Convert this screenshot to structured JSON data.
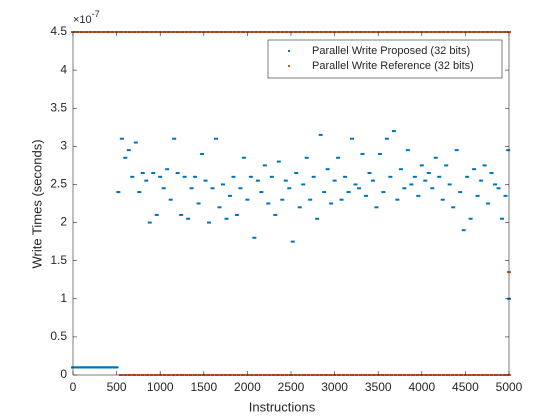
{
  "chart_data": {
    "type": "scatter",
    "xlabel": "Instructions",
    "ylabel": "Write Times (seconds)",
    "y_exponent_base": "×10",
    "y_exponent_power": "-7",
    "xlim": [
      0,
      5000
    ],
    "xticks": [
      0,
      500,
      1000,
      1500,
      2000,
      2500,
      3000,
      3500,
      4000,
      4500,
      5000
    ],
    "ylim": [
      0,
      4.5
    ],
    "yticks": [
      0,
      0.5,
      1,
      1.5,
      2,
      2.5,
      3,
      3.5,
      4,
      4.5
    ],
    "legend": "upper right",
    "series": [
      {
        "name": "Parallel Write Proposed (32 bits)",
        "color": "#0072bd",
        "x": [
          0,
          20,
          40,
          60,
          80,
          100,
          120,
          140,
          160,
          180,
          200,
          220,
          240,
          260,
          280,
          300,
          320,
          340,
          360,
          380,
          400,
          420,
          440,
          460,
          480,
          500,
          520,
          560,
          600,
          640,
          680,
          720,
          760,
          800,
          840,
          880,
          920,
          960,
          1000,
          1040,
          1080,
          1120,
          1160,
          1200,
          1240,
          1280,
          1320,
          1360,
          1400,
          1440,
          1480,
          1520,
          1560,
          1600,
          1640,
          1680,
          1720,
          1760,
          1800,
          1840,
          1880,
          1920,
          1960,
          2000,
          2040,
          2080,
          2120,
          2160,
          2200,
          2240,
          2280,
          2320,
          2360,
          2400,
          2440,
          2480,
          2520,
          2560,
          2600,
          2640,
          2680,
          2720,
          2760,
          2800,
          2840,
          2880,
          2920,
          2960,
          3000,
          3040,
          3080,
          3120,
          3160,
          3200,
          3240,
          3280,
          3320,
          3360,
          3400,
          3440,
          3480,
          3520,
          3560,
          3600,
          3640,
          3680,
          3720,
          3760,
          3800,
          3840,
          3880,
          3920,
          3960,
          4000,
          4040,
          4080,
          4120,
          4160,
          4200,
          4240,
          4280,
          4320,
          4360,
          4400,
          4440,
          4480,
          4520,
          4560,
          4600,
          4640,
          4680,
          4720,
          4760,
          4800,
          4840,
          4880,
          4920,
          4960,
          4990,
          5000
        ],
        "values": [
          0.1,
          0.1,
          0.1,
          0.1,
          0.1,
          0.1,
          0.1,
          0.1,
          0.1,
          0.1,
          0.1,
          0.1,
          0.1,
          0.1,
          0.1,
          0.1,
          0.1,
          0.1,
          0.1,
          0.1,
          0.1,
          0.1,
          0.1,
          0.1,
          0.1,
          0.1,
          2.4,
          3.1,
          2.85,
          2.95,
          2.6,
          3.05,
          2.4,
          2.65,
          2.55,
          2.0,
          2.65,
          2.1,
          2.6,
          2.45,
          2.7,
          2.3,
          3.1,
          2.65,
          2.1,
          2.6,
          2.05,
          2.45,
          2.6,
          2.25,
          2.9,
          2.55,
          2.0,
          2.45,
          3.1,
          2.2,
          2.5,
          2.05,
          2.35,
          2.6,
          2.1,
          2.45,
          2.85,
          2.3,
          2.6,
          1.8,
          2.55,
          2.4,
          2.75,
          2.25,
          2.6,
          2.1,
          2.8,
          2.3,
          2.55,
          2.45,
          1.75,
          2.65,
          2.2,
          2.5,
          2.85,
          2.3,
          2.6,
          2.05,
          3.15,
          2.4,
          2.7,
          2.25,
          2.55,
          2.85,
          2.3,
          2.6,
          2.4,
          3.1,
          2.5,
          2.45,
          2.9,
          2.35,
          2.65,
          2.55,
          2.2,
          2.9,
          2.4,
          3.1,
          2.6,
          3.2,
          2.3,
          2.7,
          2.45,
          2.95,
          2.5,
          2.6,
          2.35,
          2.75,
          2.55,
          2.65,
          2.45,
          2.85,
          2.6,
          2.3,
          2.75,
          2.5,
          2.2,
          2.95,
          2.4,
          1.9,
          2.6,
          2.05,
          2.7,
          2.35,
          2.55,
          2.75,
          2.25,
          2.65,
          2.5,
          2.45,
          2.05,
          2.35,
          2.95,
          1.0
        ]
      },
      {
        "name": "Parallel Write Reference (32 bits)",
        "color": "#d95319",
        "x": [
          0,
          50,
          100,
          150,
          200,
          250,
          300,
          350,
          400,
          450,
          500,
          550,
          600,
          650,
          700,
          750,
          800,
          850,
          900,
          950,
          1000,
          1050,
          1100,
          1150,
          1200,
          1250,
          1300,
          1350,
          1400,
          1450,
          1500,
          1550,
          1600,
          1650,
          1700,
          1750,
          1800,
          1850,
          1900,
          1950,
          2000,
          2050,
          2100,
          2150,
          2200,
          2250,
          2300,
          2350,
          2400,
          2450,
          2500,
          2550,
          2600,
          2650,
          2700,
          2750,
          2800,
          2850,
          2900,
          2950,
          3000,
          3050,
          3100,
          3150,
          3200,
          3250,
          3300,
          3350,
          3400,
          3450,
          3500,
          3550,
          3600,
          3650,
          3700,
          3750,
          3800,
          3850,
          3900,
          3950,
          4000,
          4050,
          4100,
          4150,
          4200,
          4250,
          4300,
          4350,
          4400,
          4450,
          4500,
          4550,
          4600,
          4650,
          4700,
          4750,
          4800,
          4850,
          4900,
          4950,
          5000,
          550,
          600,
          650,
          700,
          750,
          800,
          850,
          900,
          950,
          1000,
          1050,
          1100,
          1150,
          1200,
          1250,
          1300,
          1350,
          1400,
          1450,
          1500,
          1550,
          1600,
          1650,
          1700,
          1750,
          1800,
          1850,
          1900,
          1950,
          2000,
          2050,
          2100,
          2150,
          2200,
          2250,
          2300,
          2350,
          2400,
          2450,
          2500,
          2550,
          2600,
          2650,
          2700,
          2750,
          2800,
          2850,
          2900,
          2950,
          3000,
          3050,
          3100,
          3150,
          3200,
          3250,
          3300,
          3350,
          3400,
          3450,
          3500,
          3550,
          3600,
          3650,
          3700,
          3750,
          3800,
          3850,
          3900,
          3950,
          4000,
          4050,
          4100,
          4150,
          4200,
          4250,
          4300,
          4350,
          4400,
          4450,
          4500,
          4550,
          4600,
          4650,
          4700,
          4750,
          4800,
          4850,
          4900,
          4950,
          5000,
          5000
        ],
        "values": [
          4.5,
          4.5,
          4.5,
          4.5,
          4.5,
          4.5,
          4.5,
          4.5,
          4.5,
          4.5,
          4.5,
          4.5,
          4.5,
          4.5,
          4.5,
          4.5,
          4.5,
          4.5,
          4.5,
          4.5,
          4.5,
          4.5,
          4.5,
          4.5,
          4.5,
          4.5,
          4.5,
          4.5,
          4.5,
          4.5,
          4.5,
          4.5,
          4.5,
          4.5,
          4.5,
          4.5,
          4.5,
          4.5,
          4.5,
          4.5,
          4.5,
          4.5,
          4.5,
          4.5,
          4.5,
          4.5,
          4.5,
          4.5,
          4.5,
          4.5,
          4.5,
          4.5,
          4.5,
          4.5,
          4.5,
          4.5,
          4.5,
          4.5,
          4.5,
          4.5,
          4.5,
          4.5,
          4.5,
          4.5,
          4.5,
          4.5,
          4.5,
          4.5,
          4.5,
          4.5,
          4.5,
          4.5,
          4.5,
          4.5,
          4.5,
          4.5,
          4.5,
          4.5,
          4.5,
          4.5,
          4.5,
          4.5,
          4.5,
          4.5,
          4.5,
          4.5,
          4.5,
          4.5,
          4.5,
          4.5,
          4.5,
          4.5,
          4.5,
          4.5,
          4.5,
          4.5,
          4.5,
          4.5,
          4.5,
          4.5,
          4.5,
          0,
          0,
          0,
          0,
          0,
          0,
          0,
          0,
          0,
          0,
          0,
          0,
          0,
          0,
          0,
          0,
          0,
          0,
          0,
          0,
          0,
          0,
          0,
          0,
          0,
          0,
          0,
          0,
          0,
          0,
          0,
          0,
          0,
          0,
          0,
          0,
          0,
          0,
          0,
          0,
          0,
          0,
          0,
          0,
          0,
          0,
          0,
          0,
          0,
          0,
          0,
          0,
          0,
          0,
          0,
          0,
          0,
          0,
          0,
          0,
          0,
          0,
          0,
          0,
          0,
          0,
          0,
          0,
          0,
          0,
          0,
          0,
          0,
          0,
          0,
          0,
          0,
          0,
          0,
          0,
          0,
          0,
          0,
          0,
          0,
          0,
          0,
          0,
          0,
          0,
          1.35
        ]
      }
    ]
  }
}
